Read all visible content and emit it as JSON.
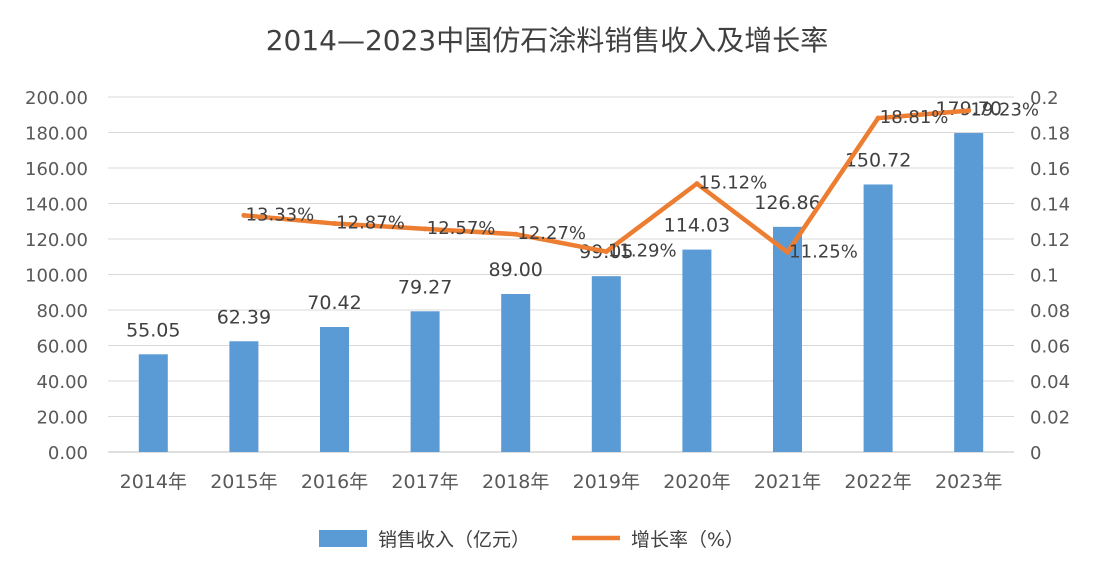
{
  "chart_data": {
    "type": "bar",
    "title": "2014—2023中国仿石涂料销售收入及增长率",
    "categories": [
      "2014年",
      "2015年",
      "2016年",
      "2017年",
      "2018年",
      "2019年",
      "2020年",
      "2021年",
      "2022年",
      "2023年"
    ],
    "series": [
      {
        "name": "销售收入（亿元）",
        "type": "bar",
        "axis": "left",
        "color": "#5b9bd5",
        "values": [
          55.05,
          62.39,
          70.42,
          79.27,
          89.0,
          99.05,
          114.03,
          126.86,
          150.72,
          179.7
        ],
        "labels": [
          "55.05",
          "62.39",
          "70.42",
          "79.27",
          "89.00",
          "99.05",
          "114.03",
          "126.86",
          "150.72",
          "179.70"
        ]
      },
      {
        "name": "增长率（%）",
        "type": "line",
        "axis": "right",
        "color": "#ed7d31",
        "values": [
          null,
          0.1333,
          0.1287,
          0.1257,
          0.1227,
          0.1129,
          0.1512,
          0.1125,
          0.1881,
          0.1923
        ],
        "labels": [
          "",
          "13.33%",
          "12.87%",
          "12.57%",
          "12.27%",
          "11.29%",
          "15.12%",
          "11.25%",
          "18.81%",
          "19.23%"
        ]
      }
    ],
    "y_left": {
      "min": 0,
      "max": 200,
      "ticks": [
        0,
        20,
        40,
        60,
        80,
        100,
        120,
        140,
        160,
        180,
        200
      ],
      "tick_labels": [
        "0.00",
        "20.00",
        "40.00",
        "60.00",
        "80.00",
        "100.00",
        "120.00",
        "140.00",
        "160.00",
        "180.00",
        "200.00"
      ]
    },
    "y_right": {
      "min": 0,
      "max": 0.2,
      "ticks": [
        0,
        0.02,
        0.04,
        0.06,
        0.08,
        0.1,
        0.12,
        0.14,
        0.16,
        0.18,
        0.2
      ],
      "tick_labels": [
        "0",
        "0.02",
        "0.04",
        "0.06",
        "0.08",
        "0.1",
        "0.12",
        "0.14",
        "0.16",
        "0.18",
        "0.2"
      ]
    },
    "grid": true,
    "legend": {
      "position": "bottom",
      "items": [
        {
          "label": "销售收入（亿元）",
          "marker": "bar",
          "color": "#5b9bd5"
        },
        {
          "label": "增长率（%）",
          "marker": "line",
          "color": "#ed7d31"
        }
      ]
    }
  }
}
